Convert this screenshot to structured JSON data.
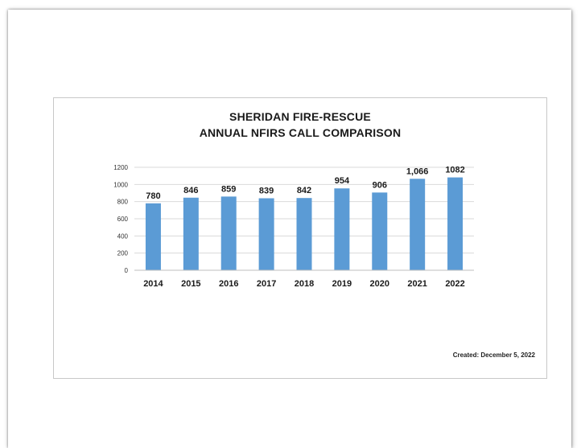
{
  "chart_data": {
    "type": "bar",
    "title_line1": "SHERIDAN FIRE-RESCUE",
    "title_line2": "ANNUAL NFIRS CALL COMPARISON",
    "categories": [
      "2014",
      "2015",
      "2016",
      "2017",
      "2018",
      "2019",
      "2020",
      "2021",
      "2022"
    ],
    "values": [
      780,
      846,
      859,
      839,
      842,
      954,
      906,
      1066,
      1082
    ],
    "data_labels": [
      "780",
      "846",
      "859",
      "839",
      "842",
      "954",
      "906",
      "1,066",
      "1082"
    ],
    "ylim": [
      0,
      1200
    ],
    "yticks": [
      "0",
      "200",
      "400",
      "600",
      "800",
      "1000",
      "1200"
    ],
    "grid": true,
    "bar_color": "#5b9bd5",
    "xlabel": "",
    "ylabel": ""
  },
  "footer": {
    "created": "Created:  December 5, 2022"
  }
}
